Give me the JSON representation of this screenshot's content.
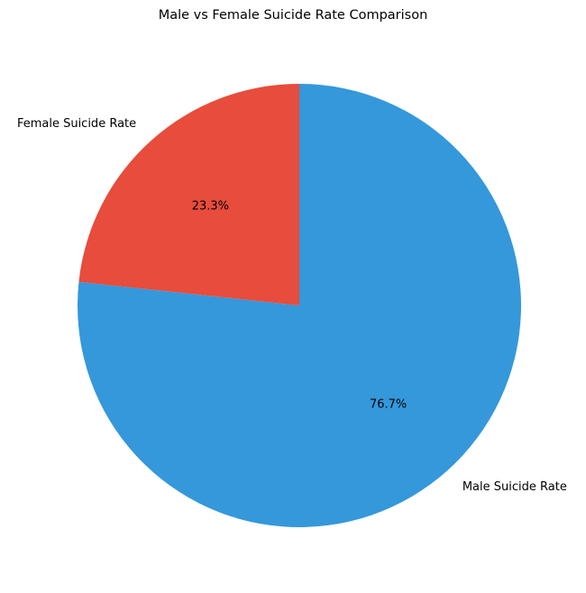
{
  "chart_data": {
    "type": "pie",
    "title": "Male vs Female Suicide Rate Comparison",
    "categories": [
      "Male Suicide Rate",
      "Female Suicide Rate"
    ],
    "values": [
      76.7,
      23.3
    ],
    "percent_labels": [
      "76.7%",
      "23.3%"
    ],
    "colors": [
      "#3498db",
      "#e74c3c"
    ],
    "start_angle_deg": 90,
    "direction": "clockwise",
    "legend": "none"
  }
}
